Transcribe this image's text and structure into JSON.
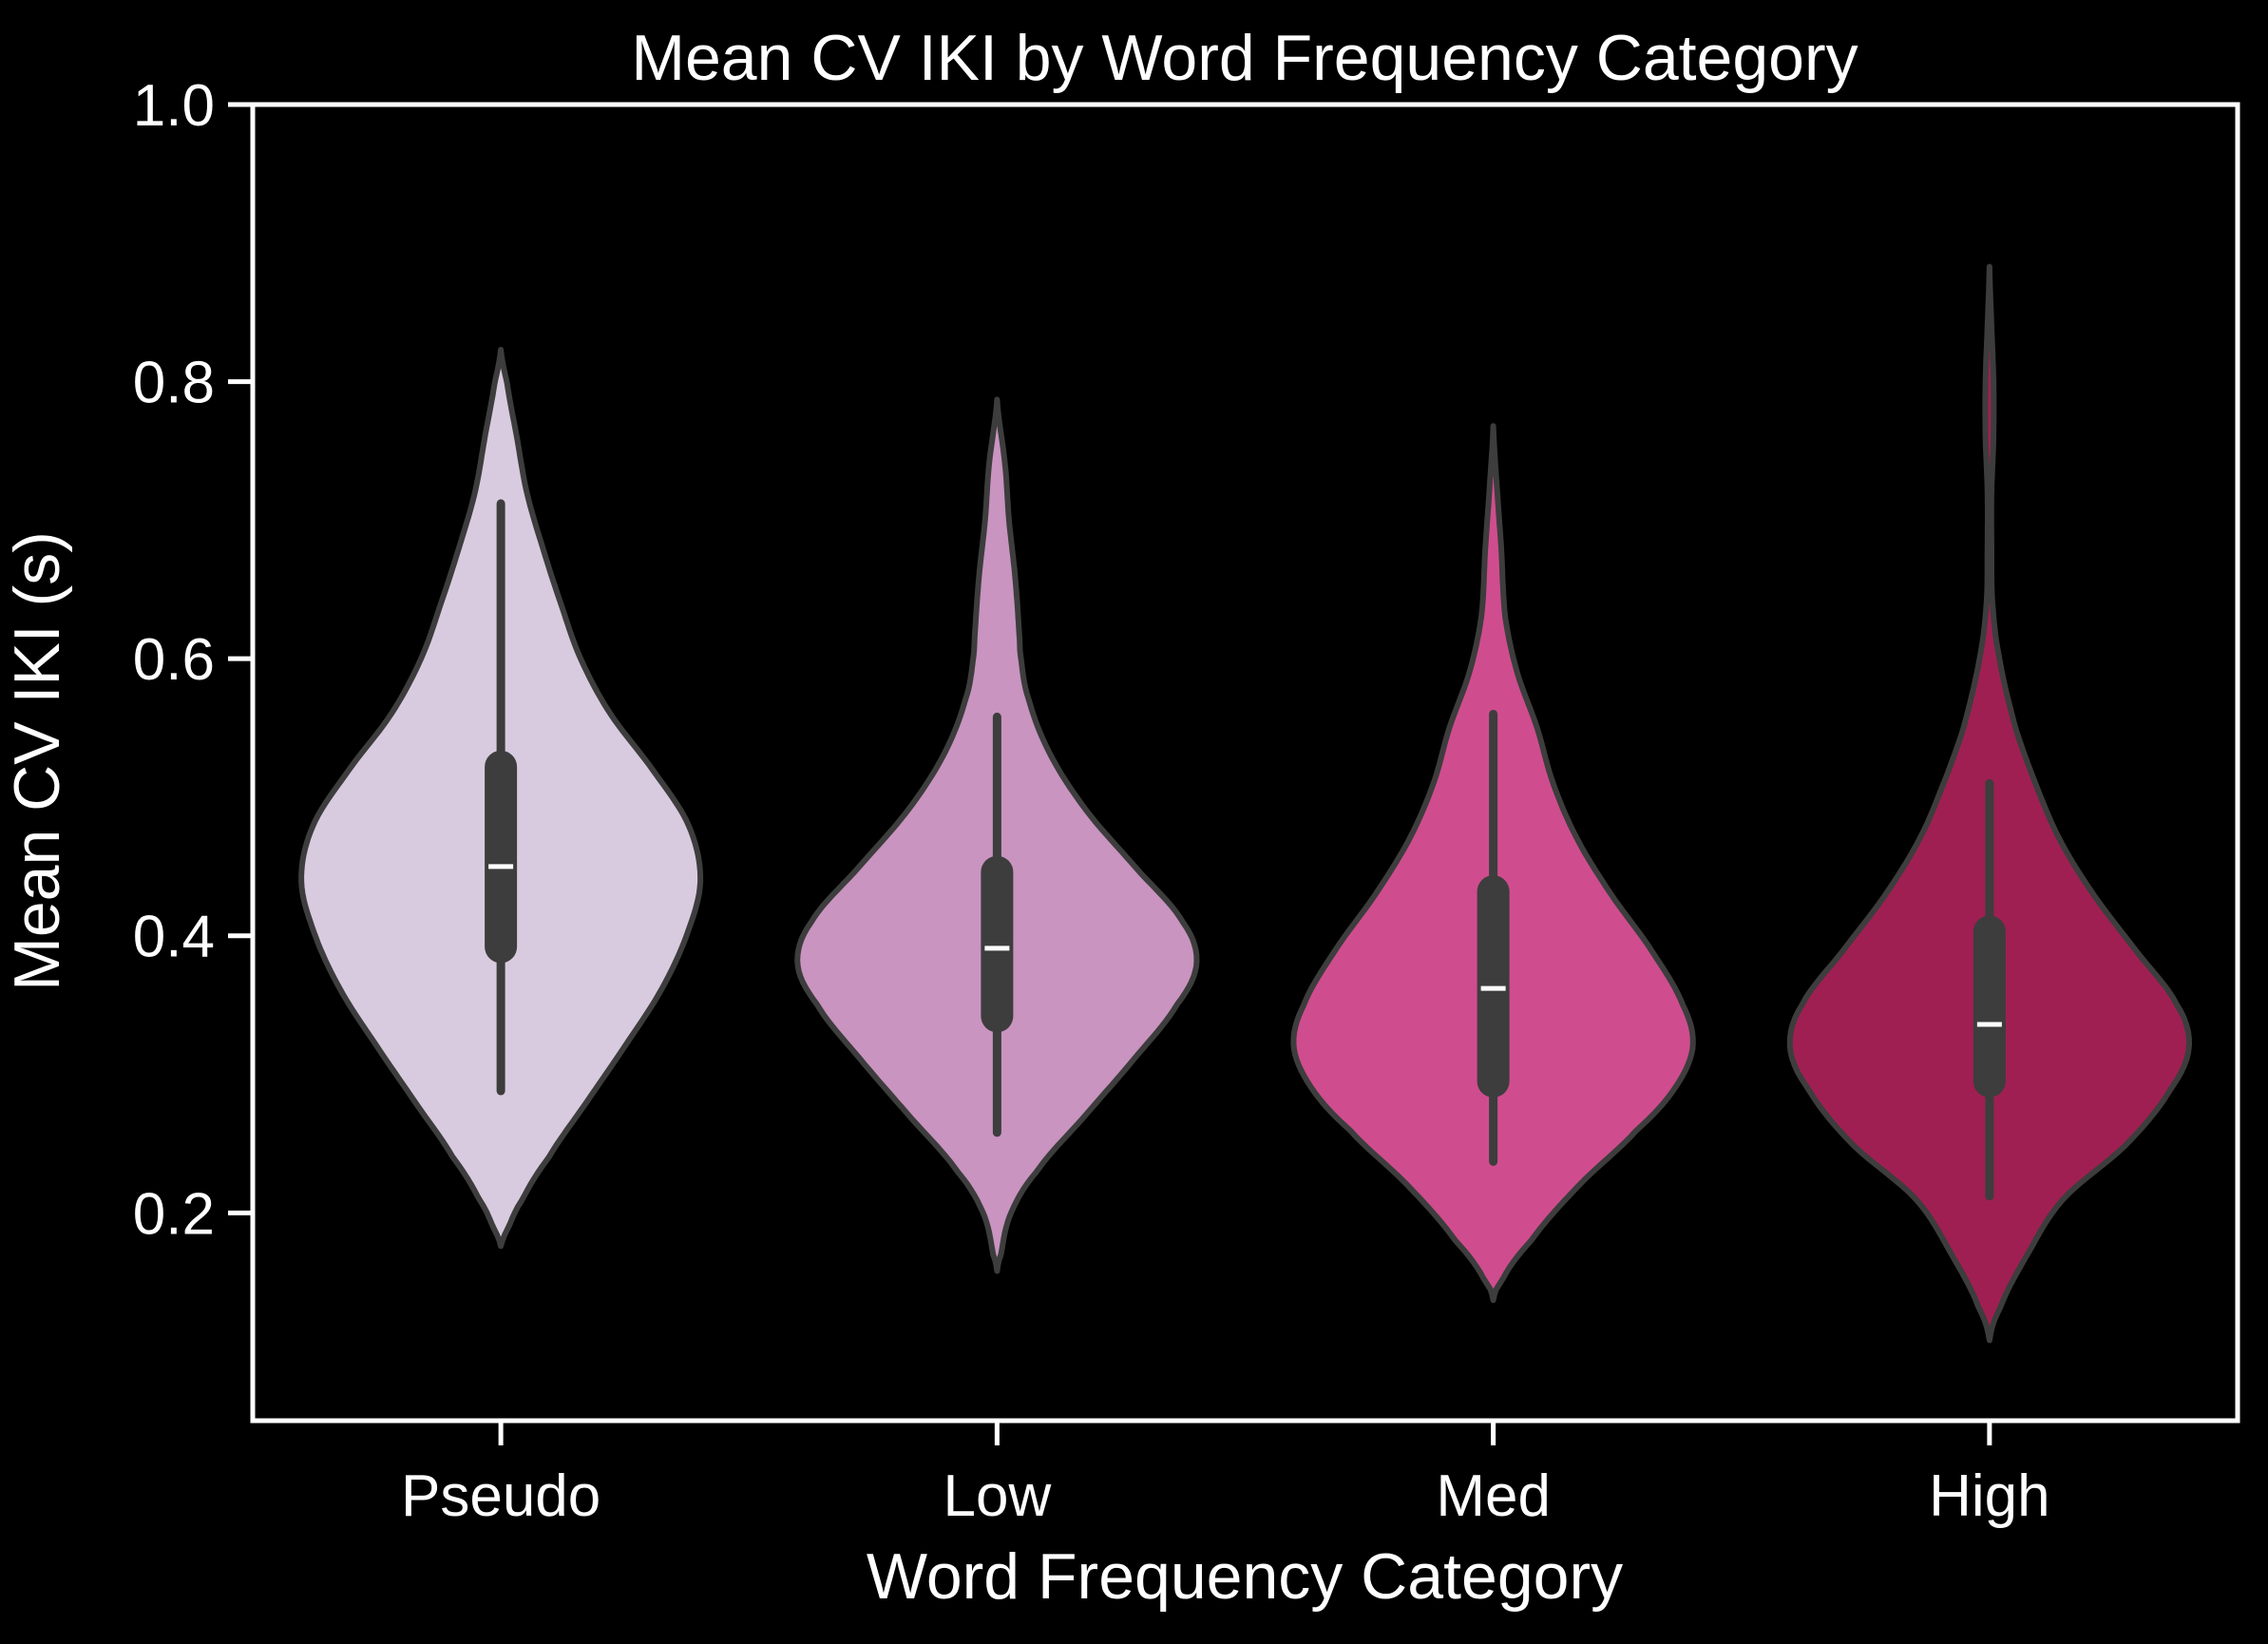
{
  "chart_data": {
    "type": "violin",
    "title": "Mean CV IKI by Word Frequency Category",
    "xlabel": "Word Frequency Category",
    "ylabel": "Mean CV IKI (s)",
    "ylim": [
      0.05,
      1.0
    ],
    "yticks": [
      0.2,
      0.4,
      0.6,
      0.8,
      1.0
    ],
    "ytick_labels": [
      "0.2",
      "0.4",
      "0.6",
      "0.8",
      "1.0"
    ],
    "grid": false,
    "legend": "none",
    "categories": [
      "Pseudo",
      "Low",
      "Med",
      "High"
    ],
    "series": [
      {
        "category": "Pseudo",
        "color": "#d9cbdf",
        "median": 0.45,
        "q1": 0.392,
        "q3": 0.522,
        "whisker_low": 0.288,
        "whisker_high": 0.712,
        "kde_min": 0.176,
        "kde_max": 0.823,
        "density_profile": [
          [
            0.176,
            0.0
          ],
          [
            0.19,
            0.04
          ],
          [
            0.21,
            0.11
          ],
          [
            0.24,
            0.24
          ],
          [
            0.28,
            0.43
          ],
          [
            0.32,
            0.62
          ],
          [
            0.36,
            0.8
          ],
          [
            0.4,
            0.93
          ],
          [
            0.44,
            1.0
          ],
          [
            0.48,
            0.94
          ],
          [
            0.52,
            0.76
          ],
          [
            0.56,
            0.55
          ],
          [
            0.6,
            0.4
          ],
          [
            0.64,
            0.3
          ],
          [
            0.68,
            0.21
          ],
          [
            0.72,
            0.13
          ],
          [
            0.76,
            0.08
          ],
          [
            0.8,
            0.03
          ],
          [
            0.823,
            0.0
          ]
        ]
      },
      {
        "category": "Low",
        "color": "#c994c0",
        "median": 0.391,
        "q1": 0.342,
        "q3": 0.446,
        "whisker_low": 0.258,
        "whisker_high": 0.558,
        "kde_min": 0.158,
        "kde_max": 0.787,
        "density_profile": [
          [
            0.158,
            0.0
          ],
          [
            0.17,
            0.02
          ],
          [
            0.2,
            0.07
          ],
          [
            0.23,
            0.2
          ],
          [
            0.27,
            0.44
          ],
          [
            0.31,
            0.68
          ],
          [
            0.35,
            0.9
          ],
          [
            0.38,
            1.0
          ],
          [
            0.41,
            0.93
          ],
          [
            0.45,
            0.69
          ],
          [
            0.49,
            0.45
          ],
          [
            0.53,
            0.27
          ],
          [
            0.57,
            0.16
          ],
          [
            0.6,
            0.12
          ],
          [
            0.62,
            0.11
          ],
          [
            0.66,
            0.09
          ],
          [
            0.7,
            0.06
          ],
          [
            0.74,
            0.04
          ],
          [
            0.787,
            0.0
          ]
        ]
      },
      {
        "category": "Med",
        "color": "#cf4d8e",
        "median": 0.362,
        "q1": 0.295,
        "q3": 0.432,
        "whisker_low": 0.237,
        "whisker_high": 0.56,
        "kde_min": 0.137,
        "kde_max": 0.768,
        "density_profile": [
          [
            0.137,
            0.0
          ],
          [
            0.15,
            0.04
          ],
          [
            0.18,
            0.19
          ],
          [
            0.22,
            0.43
          ],
          [
            0.26,
            0.72
          ],
          [
            0.29,
            0.91
          ],
          [
            0.32,
            1.0
          ],
          [
            0.35,
            0.95
          ],
          [
            0.39,
            0.79
          ],
          [
            0.43,
            0.59
          ],
          [
            0.47,
            0.42
          ],
          [
            0.51,
            0.3
          ],
          [
            0.55,
            0.22
          ],
          [
            0.59,
            0.12
          ],
          [
            0.63,
            0.06
          ],
          [
            0.68,
            0.04
          ],
          [
            0.72,
            0.02
          ],
          [
            0.768,
            0.0
          ]
        ]
      },
      {
        "category": "High",
        "color": "#a01f52",
        "median": 0.336,
        "q1": 0.295,
        "q3": 0.403,
        "whisker_low": 0.212,
        "whisker_high": 0.51,
        "kde_min": 0.108,
        "kde_max": 0.883,
        "density_profile": [
          [
            0.108,
            0.0
          ],
          [
            0.13,
            0.05
          ],
          [
            0.17,
            0.19
          ],
          [
            0.21,
            0.37
          ],
          [
            0.25,
            0.69
          ],
          [
            0.29,
            0.91
          ],
          [
            0.32,
            1.0
          ],
          [
            0.35,
            0.94
          ],
          [
            0.39,
            0.73
          ],
          [
            0.43,
            0.52
          ],
          [
            0.47,
            0.35
          ],
          [
            0.51,
            0.23
          ],
          [
            0.55,
            0.13
          ],
          [
            0.6,
            0.05
          ],
          [
            0.64,
            0.015
          ],
          [
            0.68,
            0.01
          ],
          [
            0.72,
            0.01
          ],
          [
            0.76,
            0.02
          ],
          [
            0.8,
            0.02
          ],
          [
            0.84,
            0.01
          ],
          [
            0.883,
            0.0
          ]
        ]
      }
    ]
  }
}
